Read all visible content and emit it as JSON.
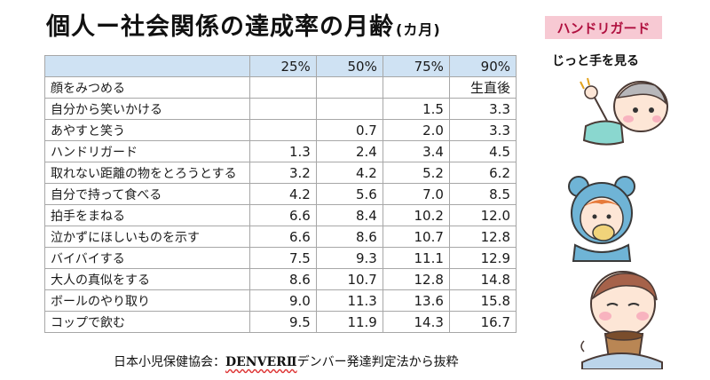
{
  "title": {
    "main": "個人ー社会関係の達成率の月齢",
    "unit": "(カ月)"
  },
  "badge": {
    "label": "ハンドリガード",
    "bg": "#f7c9d3",
    "color": "#b0103f"
  },
  "caption": "じっと手を見る",
  "table": {
    "header": [
      "",
      "25%",
      "50%",
      "75%",
      "90%"
    ],
    "header_bg": "#cfe2f3",
    "rows": [
      {
        "label": "顔をみつめる",
        "values": [
          "",
          "",
          "",
          "生直後"
        ]
      },
      {
        "label": "自分から笑いかける",
        "values": [
          "",
          "",
          "1.5",
          "3.3"
        ]
      },
      {
        "label": "あやすと笑う",
        "values": [
          "",
          "0.7",
          "2.0",
          "3.3"
        ]
      },
      {
        "label": "ハンドリガード",
        "values": [
          "1.3",
          "2.4",
          "3.4",
          "4.5"
        ]
      },
      {
        "label": "取れない距離の物をとろうとする",
        "values": [
          "3.2",
          "4.2",
          "5.2",
          "6.2"
        ]
      },
      {
        "label": "自分で持って食べる",
        "values": [
          "4.2",
          "5.6",
          "7.0",
          "8.5"
        ]
      },
      {
        "label": "拍手をまねる",
        "values": [
          "6.6",
          "8.4",
          "10.2",
          "12.0"
        ]
      },
      {
        "label": "泣かずにほしいものを示す",
        "values": [
          "6.6",
          "8.6",
          "10.7",
          "12.8"
        ]
      },
      {
        "label": "バイバイする",
        "values": [
          "7.5",
          "9.3",
          "11.1",
          "12.9"
        ]
      },
      {
        "label": "大人の真似をする",
        "values": [
          "8.6",
          "10.7",
          "12.8",
          "14.8"
        ]
      },
      {
        "label": "ボールのやり取り",
        "values": [
          "9.0",
          "11.3",
          "13.6",
          "15.8"
        ]
      },
      {
        "label": "コップで飲む",
        "values": [
          "9.5",
          "11.9",
          "14.3",
          "16.7"
        ]
      }
    ]
  },
  "source": {
    "prefix": "日本小児保健協会：",
    "brand": "DENVERⅡ",
    "suffix": "デンバー発達判定法から抜粋"
  },
  "illustrations": [
    "baby-lying-looking-at-hand-icon",
    "baby-bear-hood-eating-icon",
    "baby-drinking-cup-icon"
  ]
}
